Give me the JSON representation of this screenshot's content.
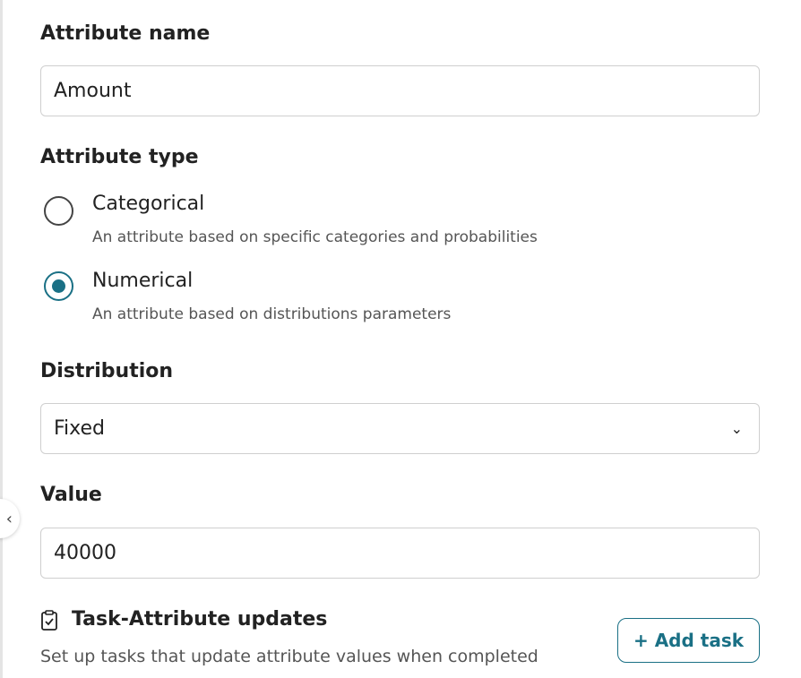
{
  "attribute_name": {
    "label": "Attribute name",
    "value": "Amount"
  },
  "attribute_type": {
    "label": "Attribute type",
    "options": [
      {
        "title": "Categorical",
        "description": "An attribute based on specific categories and probabilities",
        "selected": false
      },
      {
        "title": "Numerical",
        "description": "An attribute based on distributions parameters",
        "selected": true
      }
    ]
  },
  "distribution": {
    "label": "Distribution",
    "selected": "Fixed"
  },
  "value": {
    "label": "Value",
    "value": "40000"
  },
  "task_updates": {
    "title": "Task-Attribute updates",
    "description": "Set up tasks that update attribute values when completed",
    "add_label": "+ Add task"
  },
  "accent": "#1a7085"
}
